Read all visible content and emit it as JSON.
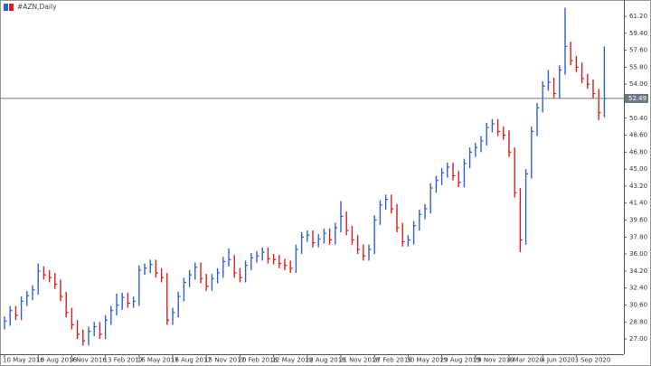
{
  "chart_data": {
    "type": "hlc",
    "title": "#AZN,Daily",
    "categories": [
      "10 May 2016",
      null,
      null,
      null,
      null,
      null,
      "10 Aug 2016",
      null,
      null,
      null,
      null,
      null,
      "9 Nov 2016",
      null,
      null,
      null,
      null,
      null,
      "13 Feb 2017",
      null,
      null,
      null,
      null,
      null,
      "16 May 2017",
      null,
      null,
      null,
      null,
      null,
      "16 Aug 2017",
      null,
      null,
      null,
      null,
      null,
      "15 Nov 2017",
      null,
      null,
      null,
      null,
      null,
      "20 Feb 2018",
      null,
      null,
      null,
      null,
      null,
      "22 May 2018",
      null,
      null,
      null,
      null,
      null,
      "22 Aug 2018",
      null,
      null,
      null,
      null,
      null,
      "21 Nov 2018",
      null,
      null,
      null,
      null,
      null,
      "27 Feb 2019",
      null,
      null,
      null,
      null,
      null,
      "30 May 2019",
      null,
      null,
      null,
      null,
      null,
      "29 Aug 2019",
      null,
      null,
      null,
      null,
      null,
      "29 Nov 2019",
      null,
      null,
      null,
      null,
      null,
      "4 Mar 2020",
      null,
      null,
      null,
      null,
      null,
      "4 Jun 2020",
      null,
      null,
      null,
      null,
      null,
      "3 Sep 2020",
      null,
      null,
      null,
      null,
      null
    ],
    "high": [
      29.4,
      30.5,
      30.5,
      31.5,
      32.1,
      32.7,
      35.0,
      34.7,
      34.3,
      34.0,
      33.3,
      32.0,
      30.3,
      29.0,
      28.0,
      28.3,
      28.8,
      28.8,
      29.5,
      30.5,
      31.8,
      31.9,
      31.9,
      31.5,
      34.8,
      35.0,
      35.4,
      35.4,
      34.5,
      34.0,
      30.3,
      32.0,
      33.5,
      34.3,
      35.1,
      35.1,
      33.9,
      33.9,
      34.5,
      35.7,
      36.6,
      35.9,
      34.5,
      35.3,
      36.1,
      36.3,
      36.7,
      36.7,
      36.0,
      35.9,
      35.5,
      35.3,
      37.0,
      38.3,
      38.5,
      38.5,
      38.1,
      38.7,
      38.7,
      39.3,
      41.6,
      40.5,
      39.0,
      38.0,
      37.0,
      37.0,
      40.1,
      41.7,
      42.3,
      42.3,
      41.3,
      39.3,
      38.0,
      39.5,
      40.7,
      41.3,
      43.5,
      44.3,
      45.1,
      45.7,
      45.7,
      44.8,
      46.1,
      47.3,
      47.8,
      48.5,
      49.9,
      50.3,
      50.3,
      49.5,
      49.1,
      47.3,
      43.0,
      45.0,
      49.5,
      52.0,
      54.3,
      55.5,
      54.7,
      56.0,
      62.1,
      58.5,
      57.0,
      56.3,
      55.1,
      54.5,
      53.5,
      58.0
    ],
    "low": [
      28.0,
      28.4,
      29.0,
      29.0,
      30.5,
      31.1,
      31.7,
      33.3,
      33.0,
      32.3,
      31.0,
      29.3,
      28.0,
      27.0,
      26.3,
      26.3,
      27.3,
      27.0,
      27.0,
      28.5,
      29.5,
      30.1,
      30.3,
      30.3,
      30.5,
      33.8,
      34.0,
      33.5,
      33.0,
      28.5,
      28.5,
      29.3,
      31.0,
      32.5,
      33.3,
      32.9,
      32.1,
      32.1,
      32.9,
      33.5,
      34.7,
      33.5,
      33.0,
      33.0,
      34.3,
      35.1,
      35.3,
      35.0,
      34.9,
      34.5,
      34.3,
      34.0,
      34.0,
      36.0,
      37.3,
      36.7,
      36.7,
      37.1,
      37.0,
      37.0,
      38.3,
      38.0,
      37.0,
      36.0,
      35.3,
      35.3,
      36.0,
      39.1,
      40.7,
      40.3,
      38.3,
      36.8,
      36.8,
      37.0,
      38.5,
      39.7,
      40.3,
      42.5,
      43.3,
      44.1,
      43.8,
      43.1,
      43.1,
      45.1,
      46.3,
      46.8,
      47.5,
      48.9,
      48.5,
      48.1,
      46.3,
      42.0,
      36.2,
      37.0,
      44.0,
      48.5,
      51.0,
      53.3,
      52.5,
      52.5,
      55.0,
      56.0,
      55.3,
      54.1,
      53.5,
      52.5,
      50.2,
      50.5
    ],
    "close": [
      28.9,
      30.0,
      29.5,
      31.0,
      31.6,
      32.2,
      34.2,
      33.8,
      33.5,
      32.8,
      31.5,
      29.8,
      28.5,
      27.5,
      26.8,
      27.8,
      28.3,
      27.5,
      29.0,
      30.0,
      30.6,
      31.4,
      30.8,
      31.0,
      34.3,
      34.5,
      34.9,
      34.0,
      33.5,
      29.0,
      29.8,
      31.5,
      33.0,
      33.8,
      34.6,
      33.4,
      32.6,
      33.4,
      34.0,
      35.2,
      35.4,
      34.0,
      33.5,
      34.8,
      35.6,
      35.8,
      36.2,
      35.5,
      35.4,
      35.0,
      34.8,
      34.5,
      36.5,
      37.8,
      38.0,
      37.2,
      37.6,
      38.2,
      37.5,
      38.8,
      40.0,
      38.5,
      37.5,
      36.5,
      35.8,
      36.5,
      39.6,
      41.2,
      41.8,
      40.8,
      38.8,
      37.3,
      37.5,
      39.0,
      40.2,
      40.8,
      43.0,
      43.8,
      44.6,
      45.2,
      44.3,
      43.6,
      45.6,
      46.8,
      47.3,
      48.0,
      49.4,
      49.8,
      49.0,
      48.6,
      46.8,
      42.5,
      37.5,
      44.5,
      49.0,
      51.5,
      53.8,
      54.2,
      53.0,
      55.5,
      58.0,
      56.5,
      55.8,
      54.6,
      54.0,
      53.0,
      51.0,
      52.49
    ],
    "up_color": "#2f5fd0",
    "down_color": "#d62020",
    "last_price": 52.49,
    "ylim": [
      25.38,
      62.54
    ],
    "yticks": [
      {
        "value": 61.2,
        "label": "61.20"
      },
      {
        "value": 59.4,
        "label": "59.40"
      },
      {
        "value": 57.6,
        "label": "57.60"
      },
      {
        "value": 55.8,
        "label": "55.80"
      },
      {
        "value": 54,
        "label": "54.00"
      },
      {
        "value": 50.4,
        "label": "50.40"
      },
      {
        "value": 48.6,
        "label": "48.60"
      },
      {
        "value": 46.8,
        "label": "46.80"
      },
      {
        "value": 45,
        "label": "45.00"
      },
      {
        "value": 43.2,
        "label": "43.20"
      },
      {
        "value": 41.4,
        "label": "41.40"
      },
      {
        "value": 39.6,
        "label": "39.60"
      },
      {
        "value": 37.8,
        "label": "37.80"
      },
      {
        "value": 36,
        "label": "36.00"
      },
      {
        "value": 34.2,
        "label": "34.20"
      },
      {
        "value": 32.4,
        "label": "32.40"
      },
      {
        "value": 30.6,
        "label": "30.60"
      },
      {
        "value": 28.8,
        "label": "28.80"
      },
      {
        "value": 27,
        "label": "27.00"
      }
    ],
    "grid": false
  }
}
